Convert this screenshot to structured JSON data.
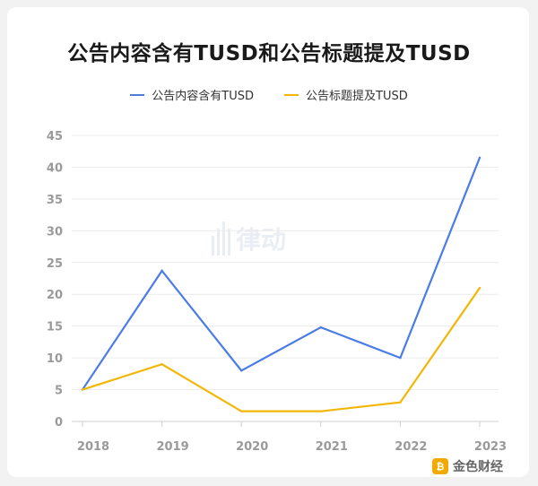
{
  "chart_data": {
    "type": "line",
    "title": "公告内容含有TUSD和公告标题提及TUSD",
    "xlabel": "",
    "ylabel": "",
    "categories": [
      "2018",
      "2019",
      "2020",
      "2021",
      "2022",
      "2023"
    ],
    "ylim": [
      0,
      45
    ],
    "yticks": [
      0,
      5,
      10,
      15,
      20,
      25,
      30,
      35,
      40,
      45
    ],
    "grid": true,
    "legend_position": "top-center",
    "series": [
      {
        "name": "公告内容含有TUSD",
        "color": "#4a7be6",
        "values": [
          5,
          23.7,
          8,
          14.8,
          10,
          41.5
        ]
      },
      {
        "name": "公告标题提及TUSD",
        "color": "#f2b705",
        "values": [
          5,
          9,
          1.6,
          1.6,
          3,
          21
        ]
      }
    ]
  },
  "watermark": {
    "text": "律动"
  },
  "footer": {
    "icon_text": "₿",
    "text": "金色财经"
  }
}
